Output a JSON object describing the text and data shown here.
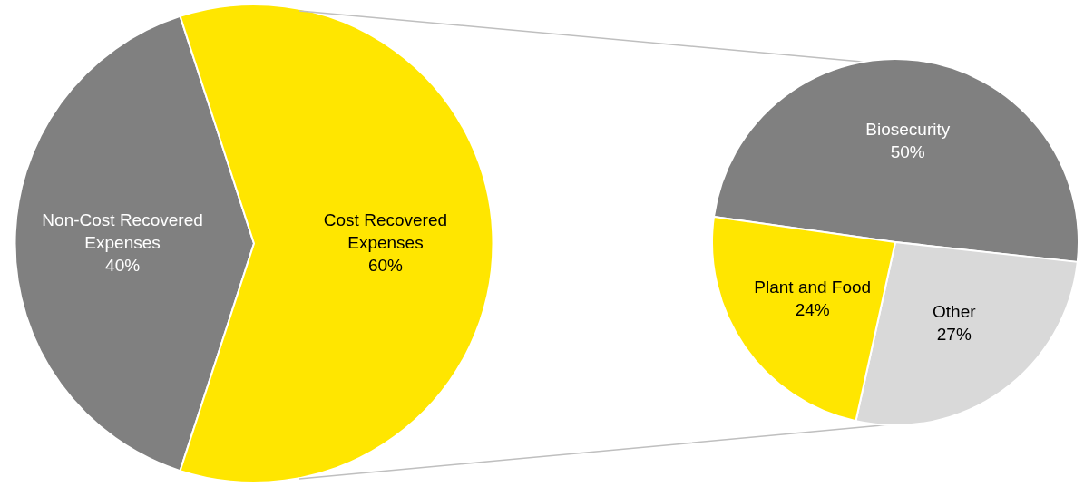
{
  "chart_data": [
    {
      "type": "pie",
      "categories": [
        "Non-Cost Recovered Expenses",
        "Cost Recovered Expenses"
      ],
      "values": [
        40,
        60
      ],
      "value_labels": [
        "40%",
        "60%"
      ],
      "colors": [
        "#808080",
        "#ffe600"
      ]
    },
    {
      "type": "pie",
      "categories": [
        "Biosecurity",
        "Other",
        "Plant and Food"
      ],
      "values": [
        50,
        27,
        24
      ],
      "value_labels": [
        "50%",
        "27%",
        "24%"
      ],
      "colors": [
        "#808080",
        "#d9d9d9",
        "#ffe600"
      ]
    }
  ]
}
